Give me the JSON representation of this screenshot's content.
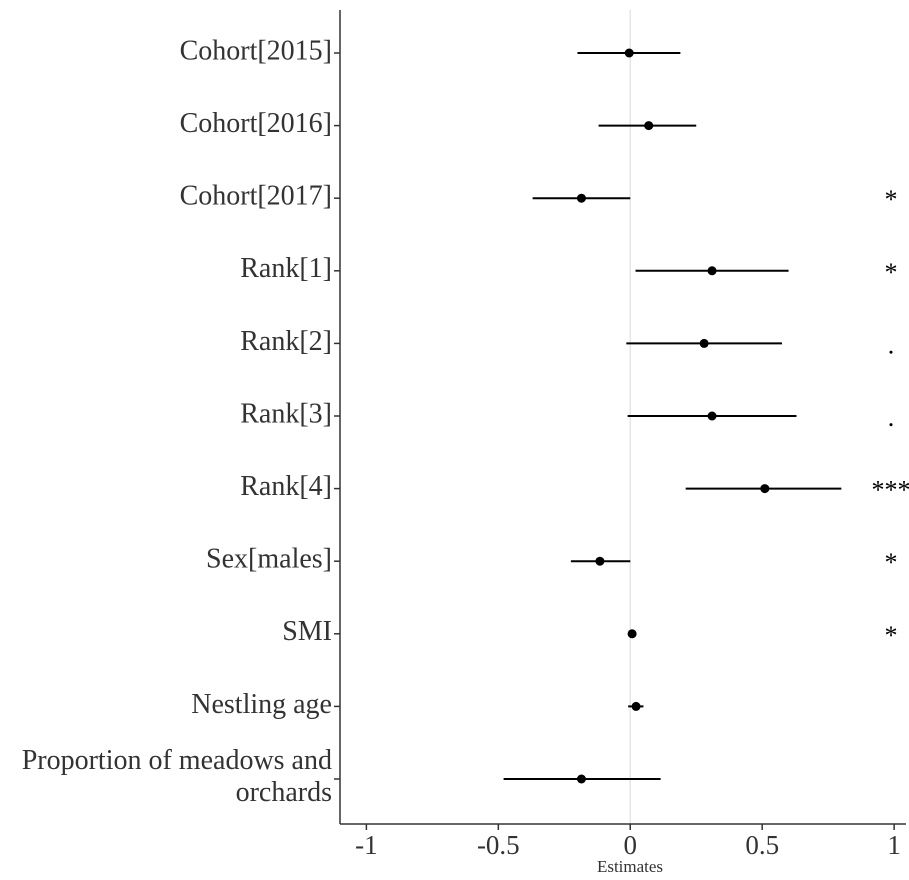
{
  "chart_data": {
    "type": "forest",
    "x_label": "Estimates",
    "categories": [
      "Cohort[2015]",
      "Cohort[2016]",
      "Cohort[2017]",
      "Rank[1]",
      "Rank[2]",
      "Rank[3]",
      "Rank[4]",
      "Sex[males]",
      "SMI",
      "Nestling age",
      "Proportion of meadows and\norchards"
    ],
    "values": [
      -0.004,
      0.07,
      -0.185,
      0.31,
      0.28,
      0.31,
      0.51,
      -0.115,
      0.007,
      0.022,
      -0.185
    ],
    "lower": [
      -0.2,
      -0.12,
      -0.37,
      0.02,
      -0.015,
      -0.01,
      0.21,
      -0.225,
      0.0,
      -0.008,
      -0.48
    ],
    "upper": [
      0.19,
      0.25,
      0.0,
      0.6,
      0.575,
      0.63,
      0.8,
      0.0,
      0.014,
      0.05,
      0.115
    ],
    "significance": [
      null,
      null,
      "*",
      "*",
      ".",
      ".",
      "***",
      "*",
      "*",
      null,
      null
    ],
    "color": "#000000",
    "xlim": [
      -1.1,
      1.045
    ],
    "xticks": [
      -1,
      -0.5,
      0,
      0.5,
      1
    ]
  }
}
